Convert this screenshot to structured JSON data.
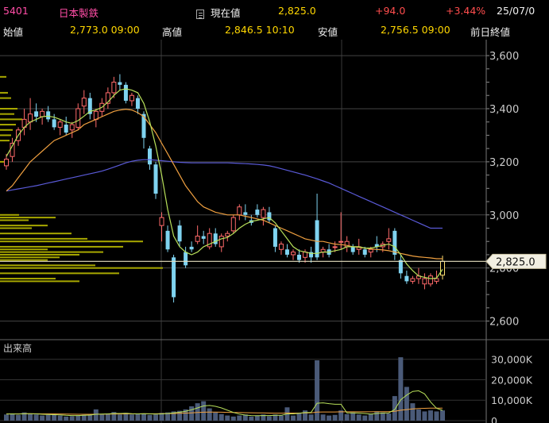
{
  "header": {
    "code": "5401",
    "name": "日本製鉄",
    "current_label": "現在値",
    "current_value": "2,825.0",
    "change": "+94.0",
    "change_pct": "+3.44%",
    "date": "25/07/0",
    "open_label": "始値",
    "open_value": "2,773.0 09:00",
    "high_label": "高値",
    "high_value": "2,846.5 10:10",
    "low_label": "安値",
    "low_value": "2,756.5 09:00",
    "prev_close_label": "前日終値"
  },
  "colors": {
    "up_candle": "#ff6a6a",
    "down_candle": "#7fd3f0",
    "ma_short": "#b8e05a",
    "ma_mid": "#f0a040",
    "ma_long": "#5a5ad8",
    "grid": "#444444",
    "volume_bar": "#4a5a78",
    "price_profile": "#a8a800",
    "current_price_line": "#e8e0c0"
  },
  "chart_data": {
    "type": "candlestick",
    "price_axis": {
      "ticks": [
        "3,600",
        "3,400",
        "3,200",
        "3,000",
        "2,800",
        "2,600"
      ],
      "values": [
        3600,
        3400,
        3200,
        3000,
        2800,
        2600
      ],
      "ylim": [
        2530,
        3660
      ]
    },
    "current_price_marker": {
      "label": "2,825.0",
      "value": 2825
    },
    "candles": [
      [
        3185,
        3230,
        3170,
        3210
      ],
      [
        3220,
        3290,
        3200,
        3270
      ],
      [
        3280,
        3330,
        3260,
        3320
      ],
      [
        3330,
        3400,
        3300,
        3360
      ],
      [
        3350,
        3440,
        3320,
        3380
      ],
      [
        3390,
        3420,
        3350,
        3370
      ],
      [
        3370,
        3400,
        3340,
        3390
      ],
      [
        3390,
        3410,
        3350,
        3360
      ],
      [
        3360,
        3380,
        3320,
        3330
      ],
      [
        3330,
        3360,
        3300,
        3350
      ],
      [
        3340,
        3370,
        3300,
        3310
      ],
      [
        3320,
        3350,
        3290,
        3340
      ],
      [
        3330,
        3420,
        3320,
        3400
      ],
      [
        3410,
        3470,
        3380,
        3440
      ],
      [
        3440,
        3460,
        3360,
        3380
      ],
      [
        3360,
        3400,
        3330,
        3390
      ],
      [
        3390,
        3440,
        3370,
        3420
      ],
      [
        3420,
        3480,
        3400,
        3460
      ],
      [
        3460,
        3520,
        3440,
        3500
      ],
      [
        3500,
        3530,
        3470,
        3490
      ],
      [
        3490,
        3500,
        3420,
        3430
      ],
      [
        3430,
        3460,
        3410,
        3450
      ],
      [
        3440,
        3450,
        3380,
        3400
      ],
      [
        3380,
        3390,
        3250,
        3290
      ],
      [
        3250,
        3260,
        3170,
        3190
      ],
      [
        3190,
        3200,
        3060,
        3080
      ],
      [
        2960,
        3010,
        2900,
        2990
      ],
      [
        2940,
        2960,
        2860,
        2870
      ],
      [
        2840,
        2850,
        2670,
        2690
      ],
      [
        2960,
        2980,
        2880,
        2900
      ],
      [
        2860,
        2880,
        2800,
        2810
      ],
      [
        2880,
        2900,
        2860,
        2870
      ],
      [
        2900,
        2960,
        2890,
        2920
      ],
      [
        2920,
        2940,
        2890,
        2910
      ],
      [
        2880,
        2950,
        2870,
        2930
      ],
      [
        2930,
        2950,
        2880,
        2890
      ],
      [
        2880,
        2930,
        2860,
        2920
      ],
      [
        2920,
        2940,
        2900,
        2930
      ],
      [
        2940,
        3000,
        2930,
        2990
      ],
      [
        3000,
        3040,
        2980,
        3030
      ],
      [
        3010,
        3040,
        2980,
        3000
      ],
      [
        2980,
        3000,
        2960,
        2970
      ],
      [
        3020,
        3040,
        2990,
        3000
      ],
      [
        2990,
        3030,
        2960,
        3020
      ],
      [
        3010,
        3030,
        2970,
        2980
      ],
      [
        2950,
        2960,
        2860,
        2880
      ],
      [
        2870,
        2900,
        2850,
        2890
      ],
      [
        2870,
        2890,
        2840,
        2850
      ],
      [
        2850,
        2870,
        2830,
        2860
      ],
      [
        2850,
        2870,
        2820,
        2830
      ],
      [
        2840,
        2870,
        2820,
        2860
      ],
      [
        2860,
        2880,
        2820,
        2840
      ],
      [
        2980,
        3080,
        2830,
        2840
      ],
      [
        2860,
        2880,
        2840,
        2870
      ],
      [
        2870,
        2890,
        2840,
        2850
      ],
      [
        2880,
        2900,
        2860,
        2880
      ],
      [
        2900,
        3010,
        2870,
        2900
      ],
      [
        2880,
        2920,
        2860,
        2900
      ],
      [
        2880,
        2890,
        2850,
        2860
      ],
      [
        2870,
        2910,
        2850,
        2880
      ],
      [
        2870,
        2880,
        2840,
        2850
      ],
      [
        2860,
        2880,
        2840,
        2870
      ],
      [
        2890,
        2920,
        2860,
        2880
      ],
      [
        2880,
        2900,
        2860,
        2890
      ],
      [
        2900,
        2950,
        2870,
        2910
      ],
      [
        2940,
        2950,
        2830,
        2850
      ],
      [
        2830,
        2850,
        2760,
        2780
      ],
      [
        2770,
        2790,
        2740,
        2750
      ],
      [
        2750,
        2770,
        2740,
        2760
      ],
      [
        2760,
        2800,
        2740,
        2770
      ],
      [
        2740,
        2780,
        2720,
        2760
      ],
      [
        2740,
        2780,
        2730,
        2770
      ],
      [
        2750,
        2790,
        2740,
        2760
      ],
      [
        2773,
        2846.5,
        2756.5,
        2825
      ]
    ],
    "ma_short": [
      3220,
      3260,
      3300,
      3330,
      3350,
      3360,
      3370,
      3372,
      3368,
      3360,
      3350,
      3345,
      3355,
      3372,
      3390,
      3395,
      3405,
      3425,
      3450,
      3470,
      3475,
      3470,
      3460,
      3420,
      3350,
      3260,
      3150,
      3020,
      2920,
      2880,
      2860,
      2850,
      2860,
      2880,
      2890,
      2900,
      2910,
      2915,
      2930,
      2950,
      2965,
      2975,
      2980,
      2985,
      2990,
      2970,
      2940,
      2910,
      2880,
      2865,
      2860,
      2855,
      2855,
      2860,
      2860,
      2865,
      2870,
      2880,
      2880,
      2880,
      2875,
      2875,
      2880,
      2885,
      2890,
      2880,
      2850,
      2815,
      2790,
      2770,
      2765,
      2760,
      2762,
      2795
    ],
    "ma_mid": [
      3090,
      3110,
      3140,
      3170,
      3200,
      3220,
      3240,
      3260,
      3280,
      3290,
      3300,
      3310,
      3320,
      3340,
      3350,
      3360,
      3370,
      3380,
      3390,
      3395,
      3398,
      3395,
      3385,
      3370,
      3340,
      3310,
      3270,
      3230,
      3190,
      3150,
      3110,
      3080,
      3050,
      3030,
      3020,
      3010,
      3005,
      3000,
      3000,
      3000,
      2995,
      2990,
      2985,
      2980,
      2970,
      2960,
      2950,
      2940,
      2930,
      2920,
      2910,
      2905,
      2900,
      2900,
      2895,
      2890,
      2888,
      2885,
      2880,
      2878,
      2875,
      2872,
      2870,
      2868,
      2865,
      2860,
      2855,
      2850,
      2845,
      2842,
      2840,
      2838,
      2835,
      2835
    ],
    "ma_long": [
      3090,
      3094,
      3098,
      3102,
      3106,
      3110,
      3115,
      3120,
      3125,
      3130,
      3135,
      3140,
      3145,
      3150,
      3155,
      3160,
      3165,
      3172,
      3180,
      3188,
      3196,
      3202,
      3206,
      3208,
      3208,
      3206,
      3204,
      3202,
      3200,
      3198,
      3197,
      3196,
      3196,
      3196,
      3196,
      3196,
      3196,
      3196,
      3195,
      3194,
      3193,
      3192,
      3190,
      3188,
      3185,
      3180,
      3174,
      3168,
      3162,
      3156,
      3150,
      3143,
      3136,
      3128,
      3120,
      3110,
      3100,
      3090,
      3080,
      3070,
      3060,
      3050,
      3040,
      3030,
      3020,
      3010,
      3000,
      2990,
      2980,
      2970,
      2960,
      2950,
      2950,
      2950
    ],
    "price_profile": [
      {
        "price": 3400,
        "len": 22
      },
      {
        "price": 3380,
        "len": 18
      },
      {
        "price": 3360,
        "len": 28
      },
      {
        "price": 3340,
        "len": 20
      },
      {
        "price": 3320,
        "len": 16
      },
      {
        "price": 3300,
        "len": 14
      },
      {
        "price": 3280,
        "len": 12
      },
      {
        "price": 3200,
        "len": 8
      },
      {
        "price": 3000,
        "len": 24
      },
      {
        "price": 2990,
        "len": 70
      },
      {
        "price": 2980,
        "len": 36
      },
      {
        "price": 2960,
        "len": 60
      },
      {
        "price": 2950,
        "len": 40
      },
      {
        "price": 2930,
        "len": 90
      },
      {
        "price": 2910,
        "len": 110
      },
      {
        "price": 2900,
        "len": 180
      },
      {
        "price": 2880,
        "len": 155
      },
      {
        "price": 2870,
        "len": 60
      },
      {
        "price": 2860,
        "len": 130
      },
      {
        "price": 2850,
        "len": 100
      },
      {
        "price": 2840,
        "len": 75
      },
      {
        "price": 2830,
        "len": 60
      },
      {
        "price": 2810,
        "len": 120
      },
      {
        "price": 2800,
        "len": 205
      },
      {
        "price": 2780,
        "len": 150
      },
      {
        "price": 2760,
        "len": 70
      },
      {
        "price": 2750,
        "len": 100
      },
      {
        "price": 3440,
        "len": 14
      },
      {
        "price": 3460,
        "len": 10
      },
      {
        "price": 3520,
        "len": 8
      }
    ],
    "volume": {
      "label": "出来高",
      "ticks": [
        "30,000K",
        "20,000K",
        "10,000K",
        "0"
      ],
      "values_k": [
        3000,
        3500,
        2800,
        4000,
        3500,
        3000,
        2500,
        2800,
        3000,
        2500,
        2000,
        2200,
        2600,
        2800,
        3000,
        5500,
        3000,
        3500,
        4200,
        3000,
        3800,
        3000,
        3200,
        3500,
        2800,
        3000,
        3800,
        4000,
        4500,
        4800,
        5500,
        7000,
        8500,
        9500,
        6000,
        4000,
        3200,
        2500,
        2000,
        2500,
        3000,
        2000,
        2500,
        3000,
        2200,
        3000,
        2500,
        6500,
        2500,
        3500,
        5000,
        3000,
        29500,
        3000,
        2500,
        2800,
        5000,
        3200,
        4000,
        3000,
        2500,
        3200,
        4500,
        4000,
        3500,
        12000,
        31000,
        16500,
        8500,
        5500,
        4500,
        5000,
        4500,
        5000
      ],
      "ma_short": [
        3200,
        3300,
        3200,
        3400,
        3400,
        3300,
        3100,
        3000,
        2900,
        2800,
        2600,
        2500,
        2500,
        2600,
        2700,
        3100,
        3200,
        3300,
        3500,
        3500,
        3600,
        3400,
        3300,
        3400,
        3300,
        3200,
        3300,
        3500,
        3800,
        4100,
        4600,
        5300,
        6200,
        7200,
        7400,
        7000,
        6200,
        5100,
        4000,
        3200,
        2700,
        2500,
        2400,
        2500,
        2500,
        2600,
        2600,
        3300,
        3300,
        3600,
        4000,
        4000,
        8500,
        8700,
        8300,
        8000,
        8000,
        3800,
        3800,
        3700,
        3500,
        3200,
        3500,
        3700,
        3800,
        5400,
        10200,
        12500,
        14300,
        14600,
        13100,
        9100,
        6000,
        5000
      ],
      "ma_long": [
        3300,
        3300,
        3300,
        3350,
        3350,
        3350,
        3300,
        3300,
        3300,
        3250,
        3200,
        3150,
        3100,
        3100,
        3100,
        3150,
        3150,
        3200,
        3250,
        3250,
        3300,
        3300,
        3300,
        3350,
        3350,
        3350,
        3400,
        3450,
        3500,
        3600,
        3700,
        3800,
        3950,
        4100,
        4150,
        4150,
        4100,
        4050,
        4000,
        3950,
        3900,
        3850,
        3800,
        3750,
        3700,
        3650,
        3650,
        3700,
        3700,
        3700,
        3750,
        3750,
        4200,
        4250,
        4250,
        4250,
        4300,
        4300,
        4300,
        4300,
        4300,
        4300,
        4350,
        4400,
        4400,
        4600,
        5100,
        5400,
        5700,
        5900,
        6000,
        6100,
        6100,
        6100
      ],
      "ylim": [
        0,
        33000
      ]
    }
  }
}
